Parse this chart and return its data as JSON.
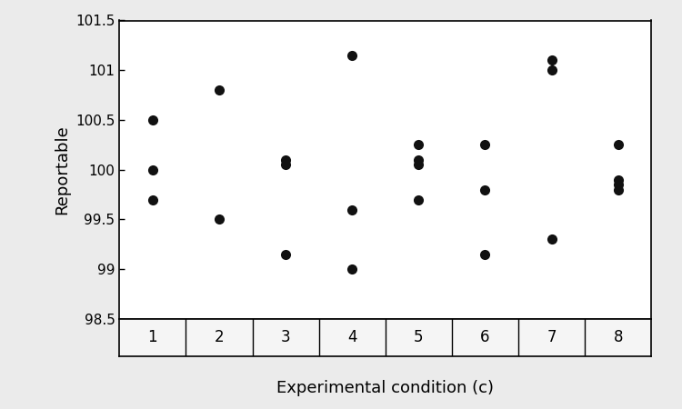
{
  "xlabel": "Experimental condition (c)",
  "ylabel": "Reportable",
  "ylim": [
    98.5,
    101.5
  ],
  "ytick_values": [
    98.5,
    99.0,
    99.5,
    100.0,
    100.5,
    101.0,
    101.5
  ],
  "ytick_labels": [
    "98.5",
    "99",
    "99.5",
    "100",
    "100.5",
    "101",
    "101.5"
  ],
  "xticks": [
    1,
    2,
    3,
    4,
    5,
    6,
    7,
    8
  ],
  "xlim": [
    0.5,
    8.5
  ],
  "background_color": "#ebebeb",
  "plot_bg_color": "#ffffff",
  "table_row_color": "#f5f5f5",
  "marker_color": "#111111",
  "marker_size": 8,
  "data": {
    "1": [
      99.7,
      100.0,
      100.5
    ],
    "2": [
      99.5,
      100.8
    ],
    "3": [
      99.15,
      100.05,
      100.1
    ],
    "4": [
      99.0,
      99.6,
      101.15
    ],
    "5": [
      99.7,
      100.05,
      100.1,
      100.25
    ],
    "6": [
      99.15,
      99.8,
      100.25
    ],
    "7": [
      99.3,
      101.0,
      101.1
    ],
    "8": [
      99.8,
      99.85,
      99.9,
      100.25
    ]
  }
}
